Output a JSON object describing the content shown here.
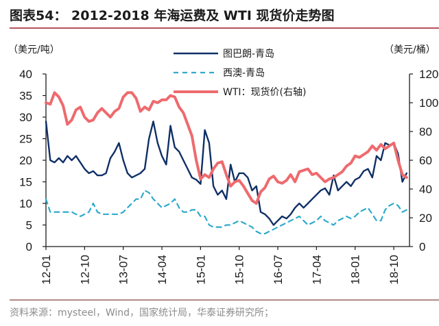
{
  "header": {
    "title": "图表54：  2012-2018 年海运费及 WTI 现货价走势图"
  },
  "footer": {
    "source": "资料来源：mysteel，Wind，国家统计局，华泰证券研究所；"
  },
  "colors": {
    "tubarao": "#0f2f66",
    "westaus": "#2eaacc",
    "wti": "#ee6a6e",
    "axis": "#1a1a1a"
  },
  "chart_data": {
    "type": "line",
    "title": "2012-2018 年海运费及 WTI 现货价走势图",
    "xlabel": "",
    "ylabel": "（美元/吨）",
    "y2label": "（美元/桶）",
    "ylim": [
      0,
      40
    ],
    "y2lim": [
      0,
      120
    ],
    "yticks": [
      "0",
      "5",
      "10",
      "15",
      "20",
      "25",
      "30",
      "35",
      "40"
    ],
    "y2ticks": [
      "0",
      "20",
      "40",
      "60",
      "80",
      "100",
      "120"
    ],
    "xticks": [
      "12-01",
      "12-10",
      "13-07",
      "14-04",
      "15-01",
      "15-10",
      "16-07",
      "17-04",
      "18-01",
      "18-10"
    ],
    "xtick_index": [
      0,
      9,
      18,
      27,
      36,
      45,
      54,
      63,
      72,
      81
    ],
    "grid": false,
    "legend_position": "top-center",
    "x": [
      "12-01",
      "12-02",
      "12-03",
      "12-04",
      "12-05",
      "12-06",
      "12-07",
      "12-08",
      "12-09",
      "12-10",
      "12-11",
      "12-12",
      "13-01",
      "13-02",
      "13-03",
      "13-04",
      "13-05",
      "13-06",
      "13-07",
      "13-08",
      "13-09",
      "13-10",
      "13-11",
      "13-12",
      "14-01",
      "14-02",
      "14-03",
      "14-04",
      "14-05",
      "14-06",
      "14-07",
      "14-08",
      "14-09",
      "14-10",
      "14-11",
      "14-12",
      "15-01",
      "15-02",
      "15-03",
      "15-04",
      "15-05",
      "15-06",
      "15-07",
      "15-08",
      "15-09",
      "15-10",
      "15-11",
      "15-12",
      "16-01",
      "16-02",
      "16-03",
      "16-04",
      "16-05",
      "16-06",
      "16-07",
      "16-08",
      "16-09",
      "16-10",
      "16-11",
      "16-12",
      "17-01",
      "17-02",
      "17-03",
      "17-04",
      "17-05",
      "17-06",
      "17-07",
      "17-08",
      "17-09",
      "17-10",
      "17-11",
      "17-12",
      "18-01",
      "18-02",
      "18-03",
      "18-04",
      "18-05",
      "18-06",
      "18-07",
      "18-08",
      "18-09",
      "18-10",
      "18-11",
      "18-12",
      "19-01"
    ],
    "series": [
      {
        "name": "图巴朗-青岛",
        "axis": "left",
        "style": "solid",
        "values": [
          29,
          20,
          19.5,
          20.5,
          19.5,
          21,
          20,
          21,
          19.5,
          18,
          17,
          17.5,
          16.5,
          16.5,
          17,
          20.5,
          22,
          24,
          20,
          17,
          16,
          16.5,
          17,
          18,
          25,
          29,
          24,
          21,
          19,
          28,
          23,
          22,
          20,
          18,
          16,
          15.5,
          14.5,
          27,
          24,
          14,
          12,
          13,
          11,
          19,
          15,
          17,
          17,
          16,
          13,
          14,
          8,
          7.5,
          6.5,
          5,
          6,
          7,
          6.5,
          7.5,
          9,
          10,
          9,
          10,
          11,
          12,
          13,
          13.5,
          12,
          16.5,
          13,
          14,
          15,
          14,
          15.5,
          16,
          17.5,
          18,
          16,
          21,
          20,
          24,
          23.5,
          24,
          21.5,
          15,
          17
        ]
      },
      {
        "name": "西澳-青岛",
        "axis": "left",
        "style": "dashed",
        "values": [
          11,
          8,
          8,
          8,
          8,
          8,
          8,
          7.5,
          7,
          7.5,
          8,
          10,
          8,
          7.5,
          7.5,
          7.5,
          7.5,
          7.5,
          8,
          9,
          10,
          11,
          11,
          13,
          12.5,
          11,
          10,
          9,
          9.5,
          10,
          11,
          9,
          8,
          8,
          8.5,
          8.5,
          7,
          7,
          5,
          4.5,
          4.5,
          4.5,
          5,
          5,
          5.5,
          6,
          5.5,
          5,
          4.5,
          3.5,
          3,
          3,
          3.5,
          4,
          4.5,
          5,
          5.5,
          6,
          6.5,
          7,
          6,
          5,
          5.5,
          6,
          7,
          6,
          5.5,
          5,
          6,
          6.5,
          7,
          6.5,
          7,
          8,
          8.5,
          9,
          7.5,
          6,
          6,
          8.5,
          9.5,
          10,
          9.5,
          8,
          8.5
        ]
      },
      {
        "name": "WTI：现货价(右轴)",
        "axis": "right",
        "style": "solid",
        "values": [
          100,
          99,
          107,
          104,
          98,
          85,
          88,
          95,
          97,
          90,
          87,
          88,
          93,
          96,
          93,
          90,
          94,
          96,
          104,
          107,
          107,
          103,
          94,
          97,
          95,
          101,
          100,
          102,
          102,
          105,
          104,
          97,
          93,
          85,
          77,
          60,
          47,
          50,
          48,
          54,
          58,
          59,
          50,
          42,
          45,
          46,
          42,
          37,
          32,
          30,
          38,
          41,
          47,
          49,
          45,
          44,
          46,
          50,
          45,
          52,
          53,
          54,
          50,
          51,
          48,
          45,
          47,
          48,
          50,
          52,
          56,
          58,
          63,
          62,
          64,
          66,
          70,
          67,
          71,
          68,
          70,
          72,
          60,
          50,
          48
        ]
      }
    ]
  }
}
